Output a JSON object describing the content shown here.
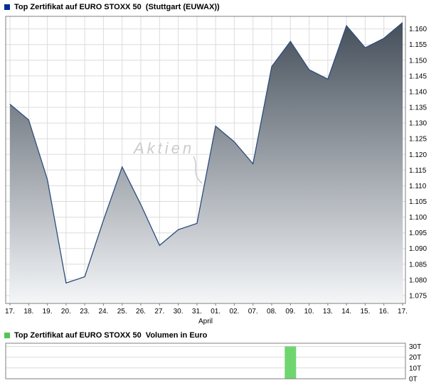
{
  "price_header": {
    "title": "Top Zertifikat auf EURO STOXX 50  (Stuttgart (EUWAX))"
  },
  "volume_header": {
    "title": "Top Zertifikat auf EURO STOXX 50  Volumen in Euro"
  },
  "watermark": {
    "text": "Aktien"
  },
  "colors": {
    "price_marker": "#002f8e",
    "volume_marker": "#54c454",
    "line": "#2e4d7b",
    "fill_top": "#454f5a",
    "fill_bottom": "#f4f6f8",
    "grid": "#dcdcdc",
    "plot_border": "#7f7f7f",
    "volume_bar": "#6fd66f",
    "watermark_color": "#cccccc"
  },
  "chart_data": [
    {
      "type": "area",
      "title": "Top Zertifikat auf EURO STOXX 50 (Stuttgart (EUWAX))",
      "categories": [
        "17.",
        "18.",
        "19.",
        "20.",
        "23.",
        "24.",
        "25.",
        "26.",
        "27.",
        "30.",
        "31.",
        "01.",
        "02.",
        "07.",
        "08.",
        "09.",
        "10.",
        "13.",
        "14.",
        "15.",
        "16.",
        "17."
      ],
      "values": [
        1.136,
        1.131,
        1.112,
        1.079,
        1.081,
        1.099,
        1.116,
        1.104,
        1.091,
        1.096,
        1.098,
        1.129,
        1.124,
        1.117,
        1.148,
        1.156,
        1.147,
        1.144,
        1.161,
        1.154,
        1.157,
        1.162
      ],
      "xlabel": "April",
      "ylabel": "",
      "ylim": [
        1.0725,
        1.164
      ],
      "yticks": [
        1.075,
        1.08,
        1.085,
        1.09,
        1.095,
        1.1,
        1.105,
        1.11,
        1.115,
        1.12,
        1.125,
        1.13,
        1.135,
        1.14,
        1.145,
        1.15,
        1.155,
        1.16
      ],
      "grid": true,
      "legend_position": "top-left",
      "yaxis_side": "right"
    },
    {
      "type": "bar",
      "title": "Top Zertifikat auf EURO STOXX 50 Volumen in Euro",
      "categories": [
        "17.",
        "18.",
        "19.",
        "20.",
        "23.",
        "24.",
        "25.",
        "26.",
        "27.",
        "30.",
        "31.",
        "01.",
        "02.",
        "07.",
        "08.",
        "09.",
        "10.",
        "13.",
        "14.",
        "15.",
        "16.",
        "17."
      ],
      "values": [
        0,
        0,
        0,
        0,
        0,
        0,
        0,
        0,
        0,
        0,
        0,
        0,
        0,
        0,
        0,
        30,
        0,
        0,
        0,
        0,
        0,
        0
      ],
      "ylabel": "Volumen in Euro",
      "ylim": [
        0,
        33
      ],
      "yticks": [
        30,
        20,
        10,
        0
      ],
      "ytick_suffix": "T",
      "grid": true,
      "yaxis_side": "right"
    }
  ]
}
